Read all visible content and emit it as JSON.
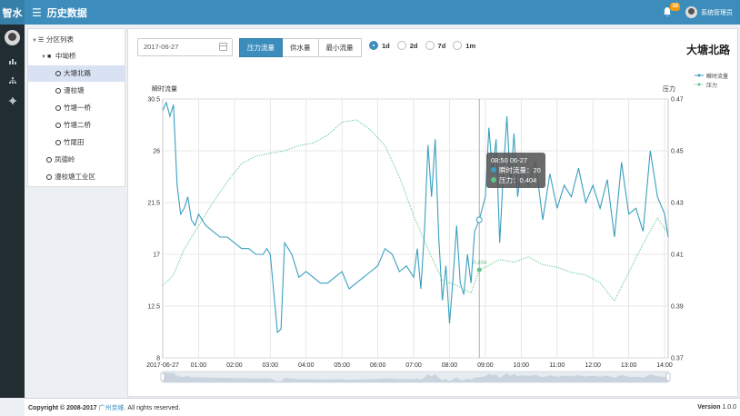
{
  "header": {
    "brand": "智水",
    "menu_icon": "☰",
    "title": "历史数据",
    "notification_count": "10",
    "user_name": "系统管理员"
  },
  "sidebar": {
    "icons": [
      "bar-chart-icon",
      "sitemap-icon",
      "gear-icon"
    ]
  },
  "tree": {
    "root": "分区列表",
    "group": "中坳桥",
    "items": [
      "大塘北路",
      "漫校塘",
      "竹塘一桥",
      "竹塘二桥",
      "竹尾田"
    ],
    "others": [
      "凤德岭",
      "漫校塘工业区"
    ]
  },
  "toolbar": {
    "date_value": "2017-06-27",
    "buttons": [
      "压力流量",
      "供水量",
      "最小流量"
    ],
    "ranges": [
      "1d",
      "2d",
      "7d",
      "1m"
    ],
    "selected_range": "1d"
  },
  "station_title": "大塘北路",
  "tooltip": {
    "title": "08:50 06-27",
    "flow_line": "瞬时流量：20",
    "pressure_line": "压力：0.404"
  },
  "colors": {
    "header": "#3c8dbc",
    "flow": "#3a9fbf",
    "pressure": "#5cc38a"
  },
  "chart_data": {
    "type": "line",
    "title": "大塘北路",
    "left_axis_label": "瞬时流量",
    "right_axis_label": "压力",
    "left_ylim": [
      8,
      30.5
    ],
    "left_ticks": [
      "8",
      "12.5",
      "17",
      "21.5",
      "26",
      "30.5"
    ],
    "right_ylim": [
      0.37,
      0.47
    ],
    "right_ticks": [
      "0.37",
      "0.39",
      "0.41",
      "0.43",
      "0.45",
      "0.47"
    ],
    "x_first_label": "2017-06-27",
    "x_ticks": [
      "01:00",
      "02:00",
      "03:00",
      "04:00",
      "05:00",
      "06:00",
      "07:00",
      "08:00",
      "09:00",
      "10:00",
      "11:00",
      "12:00",
      "13:00",
      "14:00"
    ],
    "x_start_hour": 0,
    "x_end_hour": 14.1,
    "point_label": "0.404",
    "series": [
      {
        "name": "瞬时流量",
        "axis": "left",
        "style": "solid",
        "hours": [
          0,
          0.1,
          0.2,
          0.3,
          0.4,
          0.5,
          0.6,
          0.7,
          0.8,
          0.9,
          1.0,
          1.2,
          1.4,
          1.6,
          1.8,
          2.0,
          2.2,
          2.4,
          2.6,
          2.8,
          2.9,
          3.0,
          3.2,
          3.3,
          3.4,
          3.6,
          3.8,
          4.0,
          4.2,
          4.4,
          4.6,
          4.8,
          5.0,
          5.2,
          5.4,
          5.6,
          5.8,
          6.0,
          6.2,
          6.4,
          6.6,
          6.8,
          7.0,
          7.1,
          7.2,
          7.3,
          7.4,
          7.5,
          7.6,
          7.7,
          7.8,
          7.9,
          8.0,
          8.1,
          8.2,
          8.3,
          8.4,
          8.5,
          8.6,
          8.7,
          8.83,
          9.0,
          9.1,
          9.2,
          9.3,
          9.4,
          9.5,
          9.6,
          9.7,
          9.8,
          9.9,
          10.0,
          10.2,
          10.4,
          10.6,
          10.8,
          11.0,
          11.2,
          11.4,
          11.6,
          11.8,
          12.0,
          12.2,
          12.4,
          12.6,
          12.8,
          13.0,
          13.2,
          13.4,
          13.6,
          13.8,
          14.0,
          14.1
        ],
        "values": [
          29.5,
          30.2,
          29.0,
          30.0,
          23.0,
          20.5,
          21.0,
          22.0,
          20.0,
          19.5,
          20.5,
          19.5,
          19.0,
          18.5,
          18.5,
          18.0,
          17.5,
          17.5,
          17.0,
          17.0,
          17.5,
          17.0,
          10.2,
          10.5,
          18.0,
          17.0,
          15.0,
          15.5,
          15.0,
          14.5,
          14.5,
          15.0,
          15.5,
          14.0,
          14.5,
          15.0,
          15.5,
          16.0,
          17.5,
          17.0,
          15.5,
          16.0,
          15.0,
          17.5,
          14.0,
          19.0,
          26.5,
          22.0,
          27.0,
          18.5,
          13.0,
          16.0,
          11.0,
          15.0,
          19.5,
          14.5,
          13.5,
          17.0,
          14.5,
          19.0,
          20.0,
          22.0,
          28.0,
          24.0,
          27.0,
          18.0,
          24.0,
          29.0,
          23.0,
          27.5,
          22.0,
          24.5,
          23.0,
          25.0,
          20.0,
          24.0,
          21.0,
          23.0,
          22.0,
          24.5,
          21.5,
          23.0,
          21.0,
          23.5,
          18.5,
          25.0,
          20.5,
          21.0,
          19.0,
          26.0,
          22.0,
          20.5,
          18.5
        ]
      },
      {
        "name": "压力",
        "axis": "right",
        "style": "dotted",
        "hours": [
          0,
          0.3,
          0.6,
          1.0,
          1.4,
          1.8,
          2.2,
          2.6,
          3.0,
          3.4,
          3.8,
          4.2,
          4.6,
          5.0,
          5.4,
          5.8,
          6.2,
          6.6,
          7.0,
          7.4,
          7.8,
          8.2,
          8.6,
          8.83,
          9.0,
          9.4,
          9.8,
          10.2,
          10.6,
          11.0,
          11.4,
          11.8,
          12.2,
          12.6,
          13.0,
          13.4,
          13.8,
          14.1
        ],
        "values": [
          0.398,
          0.402,
          0.412,
          0.421,
          0.43,
          0.438,
          0.445,
          0.448,
          0.449,
          0.45,
          0.452,
          0.453,
          0.456,
          0.461,
          0.462,
          0.458,
          0.452,
          0.44,
          0.425,
          0.412,
          0.4,
          0.398,
          0.395,
          0.404,
          0.405,
          0.408,
          0.407,
          0.409,
          0.406,
          0.405,
          0.403,
          0.402,
          0.399,
          0.392,
          0.403,
          0.414,
          0.424,
          0.418
        ]
      }
    ]
  }
}
